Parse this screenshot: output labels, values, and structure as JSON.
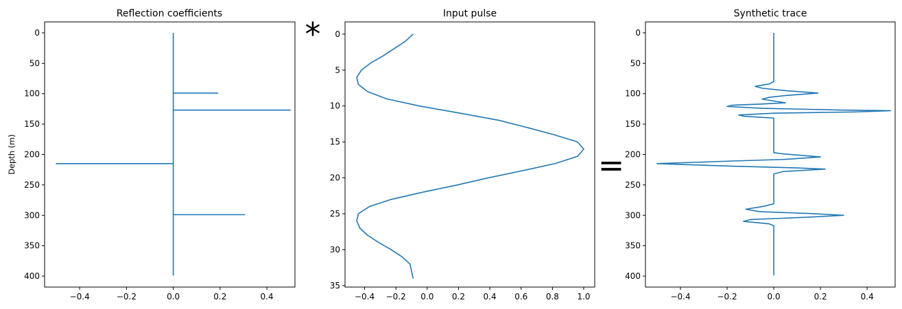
{
  "colors": {
    "series": "#1f77b4",
    "axes": "#000000",
    "background": "#ffffff"
  },
  "operators": {
    "convolve": "*",
    "equals": "="
  },
  "chart_data": [
    {
      "type": "line",
      "title": "Reflection coefficients",
      "xlabel": "",
      "ylabel": "Depth (m)",
      "xlim": [
        -0.55,
        0.52
      ],
      "ylim": [
        418,
        -18
      ],
      "y_inverted": true,
      "xticks": [
        -0.4,
        -0.2,
        0.0,
        0.2,
        0.4
      ],
      "xtick_labels": [
        "−0.4",
        "−0.2",
        "0.0",
        "0.2",
        "0.4"
      ],
      "yticks": [
        0,
        50,
        100,
        150,
        200,
        250,
        300,
        350,
        400
      ],
      "ytick_labels": [
        "0",
        "50",
        "100",
        "150",
        "200",
        "250",
        "300",
        "350",
        "400"
      ],
      "series": [
        {
          "x": [
            0,
            0,
            0.19,
            0,
            0,
            0.5,
            0,
            0,
            -0.5,
            0,
            0,
            0.305,
            0,
            0
          ],
          "y": [
            0,
            99,
            99,
            99,
            127,
            127,
            127,
            215,
            215,
            215,
            299,
            299,
            299,
            399
          ]
        }
      ]
    },
    {
      "type": "line",
      "title": "Input pulse",
      "xlabel": "",
      "ylabel": "",
      "xlim": [
        -0.525,
        1.07
      ],
      "ylim": [
        35.2,
        -1.7
      ],
      "y_inverted": true,
      "xticks": [
        -0.4,
        -0.2,
        0.0,
        0.2,
        0.4,
        0.6,
        0.8,
        1.0
      ],
      "xtick_labels": [
        "−0.4",
        "−0.2",
        "0.0",
        "0.2",
        "0.4",
        "0.6",
        "0.8",
        "1.0"
      ],
      "yticks": [
        0,
        5,
        10,
        15,
        20,
        25,
        30,
        35
      ],
      "ytick_labels": [
        "0",
        "5",
        "10",
        "15",
        "20",
        "25",
        "30",
        "35"
      ],
      "series": [
        {
          "x": [
            -0.09,
            -0.14,
            -0.21,
            -0.28,
            -0.36,
            -0.42,
            -0.45,
            -0.44,
            -0.38,
            -0.26,
            -0.05,
            0.21,
            0.46,
            0.64,
            0.81,
            0.96,
            1.0,
            0.96,
            0.82,
            0.61,
            0.39,
            0.19,
            -0.03,
            -0.23,
            -0.37,
            -0.44,
            -0.45,
            -0.43,
            -0.38,
            -0.31,
            -0.23,
            -0.16,
            -0.11,
            -0.09
          ],
          "y": [
            0,
            1,
            2,
            3,
            4,
            5,
            6,
            7,
            8,
            9,
            10,
            11,
            12,
            13,
            14,
            15,
            16,
            17,
            18,
            19,
            20,
            21,
            22,
            23,
            24,
            25,
            26,
            27,
            28,
            29,
            30,
            31,
            32,
            34
          ]
        }
      ]
    },
    {
      "type": "line",
      "title": "Synthetic trace",
      "xlabel": "",
      "ylabel": "",
      "xlim": [
        -0.55,
        0.52
      ],
      "ylim": [
        418,
        -18
      ],
      "y_inverted": true,
      "xticks": [
        -0.4,
        -0.2,
        0.0,
        0.2,
        0.4
      ],
      "xtick_labels": [
        "−0.4",
        "−0.2",
        "0.0",
        "0.2",
        "0.4"
      ],
      "yticks": [
        0,
        50,
        100,
        150,
        200,
        250,
        300,
        350,
        400
      ],
      "ytick_labels": [
        "0",
        "50",
        "100",
        "150",
        "200",
        "250",
        "300",
        "350",
        "400"
      ],
      "series": [
        {
          "x": [
            0,
            0,
            -0.02,
            -0.08,
            -0.05,
            0.05,
            0.19,
            0.05,
            -0.02,
            -0.05,
            0.0,
            0.05,
            -0.05,
            -0.18,
            -0.2,
            -0.05,
            0.3,
            0.5,
            0.35,
            0.0,
            -0.15,
            -0.13,
            -0.05,
            0,
            0,
            0,
            0.04,
            0.2,
            0.05,
            -0.2,
            -0.5,
            -0.2,
            0.1,
            0.22,
            0.04,
            0,
            0,
            0,
            -0.04,
            -0.12,
            -0.06,
            0.15,
            0.3,
            0.15,
            -0.1,
            -0.13,
            -0.02,
            0,
            0
          ],
          "y": [
            0,
            80,
            84,
            88,
            91,
            95,
            99,
            103,
            106,
            109,
            112,
            115,
            117,
            119,
            121,
            124,
            127,
            128,
            130,
            132,
            135,
            137,
            139,
            140,
            160,
            197,
            199,
            204,
            208,
            211,
            215,
            219,
            222,
            224,
            228,
            232,
            270,
            281,
            285,
            290,
            294,
            297,
            300,
            303,
            307,
            310,
            314,
            317,
            399
          ]
        }
      ]
    }
  ]
}
